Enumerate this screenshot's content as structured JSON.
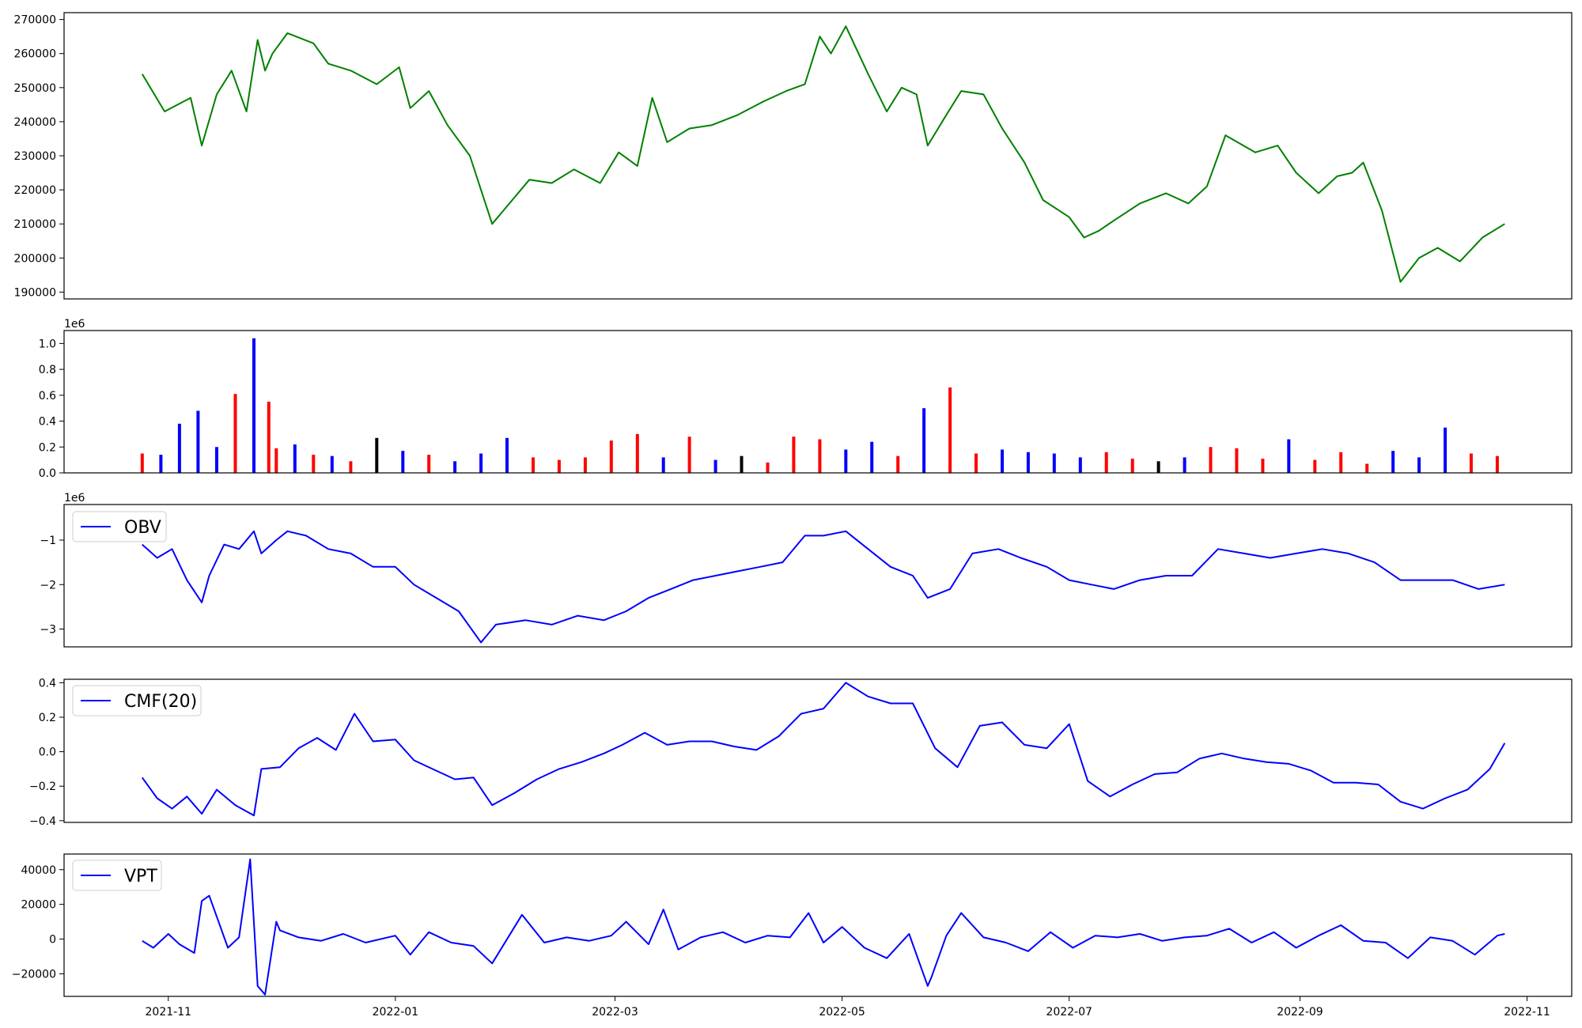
{
  "chart_data": [
    {
      "id": "price",
      "type": "line",
      "color": "#008000",
      "ylim": [
        188000,
        272000
      ],
      "yticks": [
        190000,
        200000,
        210000,
        220000,
        230000,
        240000,
        250000,
        260000,
        270000
      ],
      "ytick_labels": [
        "190000",
        "200000",
        "210000",
        "220000",
        "230000",
        "240000",
        "250000",
        "260000",
        "270000"
      ],
      "x": [
        "2021-10-25",
        "2021-10-31",
        "2021-11-07",
        "2021-11-10",
        "2021-11-14",
        "2021-11-18",
        "2021-11-22",
        "2021-11-25",
        "2021-11-27",
        "2021-11-29",
        "2021-12-03",
        "2021-12-10",
        "2021-12-14",
        "2021-12-20",
        "2021-12-27",
        "2022-01-02",
        "2022-01-05",
        "2022-01-10",
        "2022-01-15",
        "2022-01-21",
        "2022-01-27",
        "2022-02-06",
        "2022-02-12",
        "2022-02-18",
        "2022-02-25",
        "2022-03-02",
        "2022-03-07",
        "2022-03-11",
        "2022-03-15",
        "2022-03-21",
        "2022-03-27",
        "2022-04-03",
        "2022-04-10",
        "2022-04-16",
        "2022-04-21",
        "2022-04-25",
        "2022-04-28",
        "2022-05-02",
        "2022-05-08",
        "2022-05-13",
        "2022-05-17",
        "2022-05-21",
        "2022-05-24",
        "2022-05-29",
        "2022-06-02",
        "2022-06-08",
        "2022-06-13",
        "2022-06-19",
        "2022-06-24",
        "2022-07-01",
        "2022-07-05",
        "2022-07-09",
        "2022-07-13",
        "2022-07-20",
        "2022-07-27",
        "2022-08-02",
        "2022-08-07",
        "2022-08-12",
        "2022-08-20",
        "2022-08-26",
        "2022-08-31",
        "2022-09-06",
        "2022-09-11",
        "2022-09-15",
        "2022-09-18",
        "2022-09-23",
        "2022-09-28",
        "2022-10-03",
        "2022-10-08",
        "2022-10-14",
        "2022-10-20",
        "2022-10-26"
      ],
      "y": [
        254000,
        243000,
        247000,
        233000,
        248000,
        255000,
        243000,
        264000,
        255000,
        260000,
        266000,
        263000,
        257000,
        255000,
        251000,
        256000,
        244000,
        249000,
        239000,
        230000,
        210000,
        223000,
        222000,
        226000,
        222000,
        231000,
        227000,
        247000,
        234000,
        238000,
        239000,
        242000,
        246000,
        249000,
        251000,
        265000,
        260000,
        268000,
        254000,
        243000,
        250000,
        248000,
        233000,
        242000,
        249000,
        248000,
        238000,
        228000,
        217000,
        212000,
        206000,
        208000,
        211000,
        216000,
        219000,
        216000,
        221000,
        236000,
        231000,
        233000,
        225000,
        219000,
        224000,
        225000,
        228000,
        214000,
        193000,
        200000,
        203000,
        199000,
        206000,
        210000
      ],
      "xlim": [
        "2021-10-04",
        "2022-11-13"
      ],
      "xticks": [
        "2021-11-01",
        "2022-01-01",
        "2022-03-01",
        "2022-05-01",
        "2022-07-01",
        "2022-09-01",
        "2022-11-01"
      ]
    },
    {
      "id": "volume",
      "type": "bar",
      "offset_text": "1e6",
      "ylim": [
        0,
        1.1
      ],
      "yticks": [
        0.0,
        0.2,
        0.4,
        0.6,
        0.8,
        1.0
      ],
      "ytick_labels": [
        "0.0",
        "0.2",
        "0.4",
        "0.6",
        "0.8",
        "1.0"
      ],
      "colors": {
        "up": "#ff0000",
        "down": "#0000ff",
        "flat": "#000000"
      },
      "x": [
        "2021-10-25",
        "2021-10-30",
        "2021-11-04",
        "2021-11-09",
        "2021-11-14",
        "2021-11-19",
        "2021-11-24",
        "2021-11-28",
        "2021-11-30",
        "2021-12-05",
        "2021-12-10",
        "2021-12-15",
        "2021-12-20",
        "2021-12-27",
        "2022-01-03",
        "2022-01-10",
        "2022-01-17",
        "2022-01-24",
        "2022-01-31",
        "2022-02-07",
        "2022-02-14",
        "2022-02-21",
        "2022-02-28",
        "2022-03-07",
        "2022-03-14",
        "2022-03-21",
        "2022-03-28",
        "2022-04-04",
        "2022-04-11",
        "2022-04-18",
        "2022-04-25",
        "2022-05-02",
        "2022-05-09",
        "2022-05-16",
        "2022-05-23",
        "2022-05-30",
        "2022-06-06",
        "2022-06-13",
        "2022-06-20",
        "2022-06-27",
        "2022-07-04",
        "2022-07-11",
        "2022-07-18",
        "2022-07-25",
        "2022-08-01",
        "2022-08-08",
        "2022-08-15",
        "2022-08-22",
        "2022-08-29",
        "2022-09-05",
        "2022-09-12",
        "2022-09-19",
        "2022-09-26",
        "2022-10-03",
        "2022-10-10",
        "2022-10-17",
        "2022-10-24"
      ],
      "values": [
        0.15,
        0.14,
        0.38,
        0.48,
        0.2,
        0.61,
        1.04,
        0.55,
        0.19,
        0.22,
        0.14,
        0.13,
        0.09,
        0.27,
        0.17,
        0.14,
        0.09,
        0.15,
        0.27,
        0.12,
        0.1,
        0.12,
        0.25,
        0.3,
        0.12,
        0.28,
        0.1,
        0.13,
        0.08,
        0.28,
        0.26,
        0.18,
        0.24,
        0.13,
        0.5,
        0.66,
        0.15,
        0.18,
        0.16,
        0.15,
        0.12,
        0.16,
        0.11,
        0.09,
        0.12,
        0.2,
        0.19,
        0.11,
        0.26,
        0.1,
        0.16,
        0.07,
        0.17,
        0.12,
        0.35,
        0.15,
        0.13
      ],
      "kinds": [
        "up",
        "down",
        "down",
        "down",
        "down",
        "up",
        "down",
        "up",
        "up",
        "down",
        "up",
        "down",
        "up",
        "flat",
        "down",
        "up",
        "down",
        "down",
        "down",
        "up",
        "up",
        "up",
        "up",
        "up",
        "down",
        "up",
        "down",
        "flat",
        "up",
        "up",
        "up",
        "down",
        "down",
        "up",
        "down",
        "up",
        "up",
        "down",
        "down",
        "down",
        "down",
        "up",
        "up",
        "flat",
        "down",
        "up",
        "up",
        "up",
        "down",
        "up",
        "up",
        "up",
        "down",
        "down",
        "down",
        "up",
        "up"
      ],
      "xlim": [
        "2021-10-04",
        "2022-11-13"
      ]
    },
    {
      "id": "obv",
      "type": "line",
      "color": "#0000ff",
      "offset_text": "1e6",
      "legend": "OBV",
      "ylim": [
        -3.4,
        -0.2
      ],
      "yticks": [
        -1,
        -2,
        -3
      ],
      "ytick_labels": [
        "−1",
        "−2",
        "−3"
      ],
      "x": [
        "2021-10-25",
        "2021-10-29",
        "2021-11-02",
        "2021-11-06",
        "2021-11-10",
        "2021-11-12",
        "2021-11-16",
        "2021-11-20",
        "2021-11-24",
        "2021-11-26",
        "2021-11-30",
        "2021-12-03",
        "2021-12-08",
        "2021-12-14",
        "2021-12-20",
        "2021-12-26",
        "2022-01-01",
        "2022-01-06",
        "2022-01-12",
        "2022-01-18",
        "2022-01-24",
        "2022-01-28",
        "2022-02-05",
        "2022-02-12",
        "2022-02-19",
        "2022-02-26",
        "2022-03-04",
        "2022-03-10",
        "2022-03-16",
        "2022-03-22",
        "2022-03-28",
        "2022-04-03",
        "2022-04-09",
        "2022-04-15",
        "2022-04-21",
        "2022-04-26",
        "2022-05-02",
        "2022-05-08",
        "2022-05-14",
        "2022-05-20",
        "2022-05-24",
        "2022-05-30",
        "2022-06-05",
        "2022-06-12",
        "2022-06-18",
        "2022-06-25",
        "2022-07-01",
        "2022-07-07",
        "2022-07-13",
        "2022-07-20",
        "2022-07-27",
        "2022-08-03",
        "2022-08-10",
        "2022-08-17",
        "2022-08-24",
        "2022-08-31",
        "2022-09-07",
        "2022-09-14",
        "2022-09-21",
        "2022-09-28",
        "2022-10-05",
        "2022-10-12",
        "2022-10-19",
        "2022-10-26"
      ],
      "y": [
        -1.1,
        -1.4,
        -1.2,
        -1.9,
        -2.4,
        -1.8,
        -1.1,
        -1.2,
        -0.8,
        -1.3,
        -1.0,
        -0.8,
        -0.9,
        -1.2,
        -1.3,
        -1.6,
        -1.6,
        -2.0,
        -2.3,
        -2.6,
        -3.3,
        -2.9,
        -2.8,
        -2.9,
        -2.7,
        -2.8,
        -2.6,
        -2.3,
        -2.1,
        -1.9,
        -1.8,
        -1.7,
        -1.6,
        -1.5,
        -0.9,
        -0.9,
        -0.8,
        -1.2,
        -1.6,
        -1.8,
        -2.3,
        -2.1,
        -1.3,
        -1.2,
        -1.4,
        -1.6,
        -1.9,
        -2.0,
        -2.1,
        -1.9,
        -1.8,
        -1.8,
        -1.2,
        -1.3,
        -1.4,
        -1.3,
        -1.2,
        -1.3,
        -1.5,
        -1.9,
        -1.9,
        -1.9,
        -2.1,
        -2.0
      ],
      "xlim": [
        "2021-10-04",
        "2022-11-13"
      ]
    },
    {
      "id": "cmf",
      "type": "line",
      "color": "#0000ff",
      "legend": "CMF(20)",
      "ylim": [
        -0.41,
        0.42
      ],
      "yticks": [
        0.4,
        0.2,
        0.0,
        -0.2,
        -0.4
      ],
      "ytick_labels": [
        "0.4",
        "0.2",
        "0.0",
        "−0.2",
        "−0.4"
      ],
      "x": [
        "2021-10-25",
        "2021-10-29",
        "2021-11-02",
        "2021-11-06",
        "2021-11-10",
        "2021-11-14",
        "2021-11-19",
        "2021-11-24",
        "2021-11-26",
        "2021-12-01",
        "2021-12-06",
        "2021-12-11",
        "2021-12-16",
        "2021-12-21",
        "2021-12-26",
        "2022-01-01",
        "2022-01-06",
        "2022-01-12",
        "2022-01-17",
        "2022-01-22",
        "2022-01-27",
        "2022-02-02",
        "2022-02-08",
        "2022-02-14",
        "2022-02-20",
        "2022-02-26",
        "2022-03-03",
        "2022-03-09",
        "2022-03-15",
        "2022-03-21",
        "2022-03-27",
        "2022-04-02",
        "2022-04-08",
        "2022-04-14",
        "2022-04-20",
        "2022-04-26",
        "2022-05-02",
        "2022-05-08",
        "2022-05-14",
        "2022-05-20",
        "2022-05-26",
        "2022-06-01",
        "2022-06-07",
        "2022-06-13",
        "2022-06-19",
        "2022-06-25",
        "2022-07-01",
        "2022-07-06",
        "2022-07-12",
        "2022-07-18",
        "2022-07-24",
        "2022-07-30",
        "2022-08-05",
        "2022-08-11",
        "2022-08-17",
        "2022-08-23",
        "2022-08-29",
        "2022-09-04",
        "2022-09-10",
        "2022-09-16",
        "2022-09-22",
        "2022-09-28",
        "2022-10-04",
        "2022-10-10",
        "2022-10-16",
        "2022-10-22",
        "2022-10-26"
      ],
      "y": [
        -0.15,
        -0.27,
        -0.33,
        -0.26,
        -0.36,
        -0.22,
        -0.31,
        -0.37,
        -0.1,
        -0.09,
        0.02,
        0.08,
        0.01,
        0.22,
        0.06,
        0.07,
        -0.05,
        -0.11,
        -0.16,
        -0.15,
        -0.31,
        -0.24,
        -0.16,
        -0.1,
        -0.06,
        -0.01,
        0.04,
        0.11,
        0.04,
        0.06,
        0.06,
        0.03,
        0.01,
        0.09,
        0.22,
        0.25,
        0.4,
        0.32,
        0.28,
        0.28,
        0.02,
        -0.09,
        0.15,
        0.17,
        0.04,
        0.02,
        0.16,
        -0.17,
        -0.26,
        -0.19,
        -0.13,
        -0.12,
        -0.04,
        -0.01,
        -0.04,
        -0.06,
        -0.07,
        -0.11,
        -0.18,
        -0.18,
        -0.19,
        -0.29,
        -0.33,
        -0.27,
        -0.22,
        -0.1,
        0.05
      ],
      "xlim": [
        "2021-10-04",
        "2022-11-13"
      ]
    },
    {
      "id": "vpt",
      "type": "line",
      "color": "#0000ff",
      "legend": "VPT",
      "ylim": [
        -33000,
        49000
      ],
      "yticks": [
        40000,
        20000,
        0,
        -20000
      ],
      "ytick_labels": [
        "40000",
        "20000",
        "0",
        "−20000"
      ],
      "x": [
        "2021-10-25",
        "2021-10-28",
        "2021-11-01",
        "2021-11-04",
        "2021-11-08",
        "2021-11-10",
        "2021-11-12",
        "2021-11-15",
        "2021-11-17",
        "2021-11-20",
        "2021-11-23",
        "2021-11-25",
        "2021-11-27",
        "2021-11-30",
        "2021-12-01",
        "2021-12-06",
        "2021-12-12",
        "2021-12-18",
        "2021-12-24",
        "2022-01-01",
        "2022-01-05",
        "2022-01-10",
        "2022-01-16",
        "2022-01-22",
        "2022-01-27",
        "2022-02-04",
        "2022-02-10",
        "2022-02-16",
        "2022-02-22",
        "2022-02-28",
        "2022-03-04",
        "2022-03-10",
        "2022-03-14",
        "2022-03-18",
        "2022-03-24",
        "2022-03-30",
        "2022-04-05",
        "2022-04-11",
        "2022-04-17",
        "2022-04-22",
        "2022-04-26",
        "2022-05-01",
        "2022-05-07",
        "2022-05-13",
        "2022-05-19",
        "2022-05-24",
        "2022-05-25",
        "2022-05-29",
        "2022-06-02",
        "2022-06-08",
        "2022-06-14",
        "2022-06-20",
        "2022-06-26",
        "2022-07-02",
        "2022-07-08",
        "2022-07-14",
        "2022-07-20",
        "2022-07-26",
        "2022-08-01",
        "2022-08-07",
        "2022-08-13",
        "2022-08-19",
        "2022-08-25",
        "2022-08-31",
        "2022-09-06",
        "2022-09-12",
        "2022-09-18",
        "2022-09-24",
        "2022-09-30",
        "2022-10-06",
        "2022-10-12",
        "2022-10-18",
        "2022-10-24",
        "2022-10-26"
      ],
      "y": [
        -1000,
        -5000,
        3000,
        -3000,
        -8000,
        22000,
        25000,
        7000,
        -5000,
        1000,
        46000,
        -27000,
        -32000,
        10000,
        5000,
        1000,
        -1000,
        3000,
        -2000,
        2000,
        -9000,
        4000,
        -2000,
        -4000,
        -14000,
        14000,
        -2000,
        1000,
        -1000,
        2000,
        10000,
        -3000,
        17000,
        -6000,
        1000,
        4000,
        -2000,
        2000,
        1000,
        15000,
        -2000,
        7000,
        -5000,
        -11000,
        3000,
        -27000,
        -22000,
        2000,
        15000,
        1000,
        -2000,
        -7000,
        4000,
        -5000,
        2000,
        1000,
        3000,
        -1000,
        1000,
        2000,
        6000,
        -2000,
        4000,
        -5000,
        2000,
        8000,
        -1000,
        -2000,
        -11000,
        1000,
        -1000,
        -9000,
        2000,
        3000
      ],
      "xlim": [
        "2021-10-04",
        "2022-11-13"
      ],
      "xticks": [
        "2021-11-01",
        "2022-01-01",
        "2022-03-01",
        "2022-05-01",
        "2022-07-01",
        "2022-09-01",
        "2022-11-01"
      ],
      "xtick_labels": [
        "2021-11",
        "2022-01",
        "2022-03",
        "2022-05",
        "2022-07",
        "2022-09",
        "2022-11"
      ]
    }
  ]
}
